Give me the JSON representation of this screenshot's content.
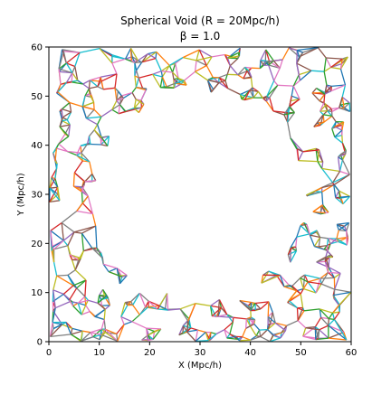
{
  "chart_data": {
    "type": "line",
    "title": "Spherical Void (R = 20Mpc/h)",
    "subtitle": "β =  1.0",
    "xlabel": "X (Mpc/h)",
    "ylabel": "Y (Mpc/h)",
    "xlim": [
      0,
      60
    ],
    "ylim": [
      0,
      60
    ],
    "xticks": [
      "0",
      "10",
      "20",
      "30",
      "40",
      "50",
      "60"
    ],
    "yticks": [
      "0",
      "10",
      "20",
      "30",
      "40",
      "50",
      "60"
    ],
    "grid": false,
    "legend": "none",
    "void": {
      "center": [
        30,
        30
      ],
      "radius": 20
    },
    "colors": [
      "#1f77b4",
      "#ff7f0e",
      "#2ca02c",
      "#d62728",
      "#9467bd",
      "#8c564b",
      "#e377c2",
      "#7f7f7f",
      "#bcbd22",
      "#17becf"
    ]
  }
}
